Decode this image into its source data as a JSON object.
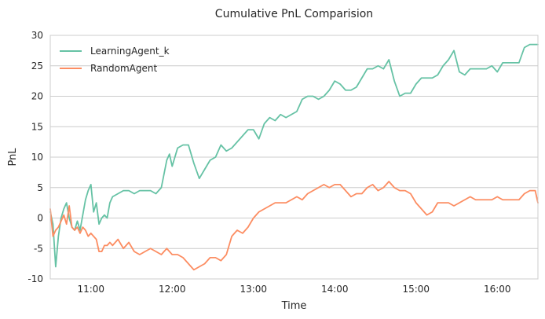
{
  "chart_data": {
    "type": "line",
    "title": "Cumulative PnL Comparision",
    "xlabel": "Time",
    "ylabel": "PnL",
    "xlim": [
      "10:30",
      "16:30"
    ],
    "ylim": [
      -10,
      30
    ],
    "yticks": [
      -10,
      -5,
      0,
      5,
      10,
      15,
      20,
      25,
      30
    ],
    "xticks": [
      "11:00",
      "12:00",
      "13:00",
      "14:00",
      "15:00",
      "16:00"
    ],
    "grid": "horizontal",
    "legend_position": "top-left",
    "series": [
      {
        "name": "LearningAgent_k",
        "color": "#66c2a5",
        "x": [
          "10:30",
          "10:32",
          "10:34",
          "10:36",
          "10:38",
          "10:40",
          "10:42",
          "10:44",
          "10:46",
          "10:48",
          "10:50",
          "10:52",
          "10:54",
          "10:56",
          "10:58",
          "11:00",
          "11:02",
          "11:04",
          "11:06",
          "11:08",
          "11:10",
          "11:12",
          "11:14",
          "11:16",
          "11:20",
          "11:24",
          "11:28",
          "11:32",
          "11:36",
          "11:40",
          "11:44",
          "11:48",
          "11:52",
          "11:56",
          "11:58",
          "12:00",
          "12:04",
          "12:08",
          "12:12",
          "12:16",
          "12:20",
          "12:24",
          "12:28",
          "12:32",
          "12:36",
          "12:40",
          "12:44",
          "12:48",
          "12:52",
          "12:56",
          "13:00",
          "13:04",
          "13:08",
          "13:12",
          "13:16",
          "13:20",
          "13:24",
          "13:28",
          "13:32",
          "13:36",
          "13:40",
          "13:44",
          "13:48",
          "13:52",
          "13:56",
          "14:00",
          "14:04",
          "14:08",
          "14:12",
          "14:16",
          "14:20",
          "14:24",
          "14:28",
          "14:32",
          "14:36",
          "14:40",
          "14:44",
          "14:48",
          "14:52",
          "14:56",
          "15:00",
          "15:04",
          "15:08",
          "15:12",
          "15:16",
          "15:20",
          "15:24",
          "15:28",
          "15:32",
          "15:36",
          "15:40",
          "15:44",
          "15:48",
          "15:52",
          "15:56",
          "16:00",
          "16:04",
          "16:08",
          "16:12",
          "16:16",
          "16:20",
          "16:24",
          "16:28",
          "16:30"
        ],
        "values": [
          1.0,
          -1.0,
          -8.0,
          -3.0,
          0.0,
          1.5,
          2.5,
          0.0,
          -1.5,
          -2.0,
          -0.5,
          -2.0,
          0.5,
          3.0,
          4.5,
          5.5,
          1.0,
          2.5,
          -1.0,
          0.0,
          0.5,
          0.0,
          2.5,
          3.5,
          4.0,
          4.5,
          4.5,
          4.0,
          4.5,
          4.5,
          4.5,
          4.0,
          5.0,
          9.5,
          10.5,
          8.5,
          11.5,
          12.0,
          12.0,
          9.0,
          6.5,
          8.0,
          9.5,
          10.0,
          12.0,
          11.0,
          11.5,
          12.5,
          13.5,
          14.5,
          14.5,
          13.0,
          15.5,
          16.5,
          16.0,
          17.0,
          16.5,
          17.0,
          17.5,
          19.5,
          20.0,
          20.0,
          19.5,
          20.0,
          21.0,
          22.5,
          22.0,
          21.0,
          21.0,
          21.5,
          23.0,
          24.5,
          24.5,
          25.0,
          24.5,
          26.0,
          22.5,
          20.0,
          20.5,
          20.5,
          22.0,
          23.0,
          23.0,
          23.0,
          23.5,
          25.0,
          26.0,
          27.5,
          24.0,
          23.5,
          24.5,
          24.5,
          24.5,
          24.5,
          25.0,
          24.0,
          25.5,
          25.5,
          25.5,
          25.5,
          28.0,
          28.5,
          28.5,
          28.5
        ]
      },
      {
        "name": "RandomAgent",
        "color": "#fc8d62",
        "x": [
          "10:30",
          "10:32",
          "10:34",
          "10:36",
          "10:38",
          "10:40",
          "10:42",
          "10:44",
          "10:46",
          "10:48",
          "10:50",
          "10:52",
          "10:54",
          "10:56",
          "10:58",
          "11:00",
          "11:02",
          "11:04",
          "11:06",
          "11:08",
          "11:10",
          "11:12",
          "11:14",
          "11:16",
          "11:20",
          "11:24",
          "11:28",
          "11:32",
          "11:36",
          "11:40",
          "11:44",
          "11:48",
          "11:52",
          "11:56",
          "11:58",
          "12:00",
          "12:04",
          "12:08",
          "12:12",
          "12:16",
          "12:20",
          "12:24",
          "12:28",
          "12:32",
          "12:36",
          "12:40",
          "12:44",
          "12:48",
          "12:52",
          "12:56",
          "13:00",
          "13:04",
          "13:08",
          "13:12",
          "13:16",
          "13:20",
          "13:24",
          "13:28",
          "13:32",
          "13:36",
          "13:40",
          "13:44",
          "13:48",
          "13:52",
          "13:56",
          "14:00",
          "14:04",
          "14:08",
          "14:12",
          "14:16",
          "14:20",
          "14:24",
          "14:28",
          "14:32",
          "14:36",
          "14:40",
          "14:44",
          "14:48",
          "14:52",
          "14:56",
          "15:00",
          "15:04",
          "15:08",
          "15:12",
          "15:16",
          "15:20",
          "15:24",
          "15:28",
          "15:32",
          "15:36",
          "15:40",
          "15:44",
          "15:48",
          "15:52",
          "15:56",
          "16:00",
          "16:04",
          "16:08",
          "16:12",
          "16:16",
          "16:20",
          "16:24",
          "16:28",
          "16:30"
        ],
        "values": [
          1.5,
          -3.0,
          -2.0,
          -1.5,
          -0.5,
          0.5,
          -1.0,
          2.0,
          -1.5,
          -2.0,
          -1.5,
          -2.5,
          -1.5,
          -2.0,
          -3.0,
          -2.5,
          -3.0,
          -3.5,
          -5.5,
          -5.5,
          -4.5,
          -4.5,
          -4.0,
          -4.5,
          -3.5,
          -5.0,
          -4.0,
          -5.5,
          -6.0,
          -5.5,
          -5.0,
          -5.5,
          -6.0,
          -5.0,
          -5.5,
          -6.0,
          -6.0,
          -6.5,
          -7.5,
          -8.5,
          -8.0,
          -7.5,
          -6.5,
          -6.5,
          -7.0,
          -6.0,
          -3.0,
          -2.0,
          -2.5,
          -1.5,
          0.0,
          1.0,
          1.5,
          2.0,
          2.5,
          2.5,
          2.5,
          3.0,
          3.5,
          3.0,
          4.0,
          4.5,
          5.0,
          5.5,
          5.0,
          5.5,
          5.5,
          4.5,
          3.5,
          4.0,
          4.0,
          5.0,
          5.5,
          4.5,
          5.0,
          6.0,
          5.0,
          4.5,
          4.5,
          4.0,
          2.5,
          1.5,
          0.5,
          1.0,
          2.5,
          2.5,
          2.5,
          2.0,
          2.5,
          3.0,
          3.5,
          3.0,
          3.0,
          3.0,
          3.0,
          3.5,
          3.0,
          3.0,
          3.0,
          3.0,
          4.0,
          4.5,
          4.5,
          2.5
        ]
      }
    ]
  }
}
